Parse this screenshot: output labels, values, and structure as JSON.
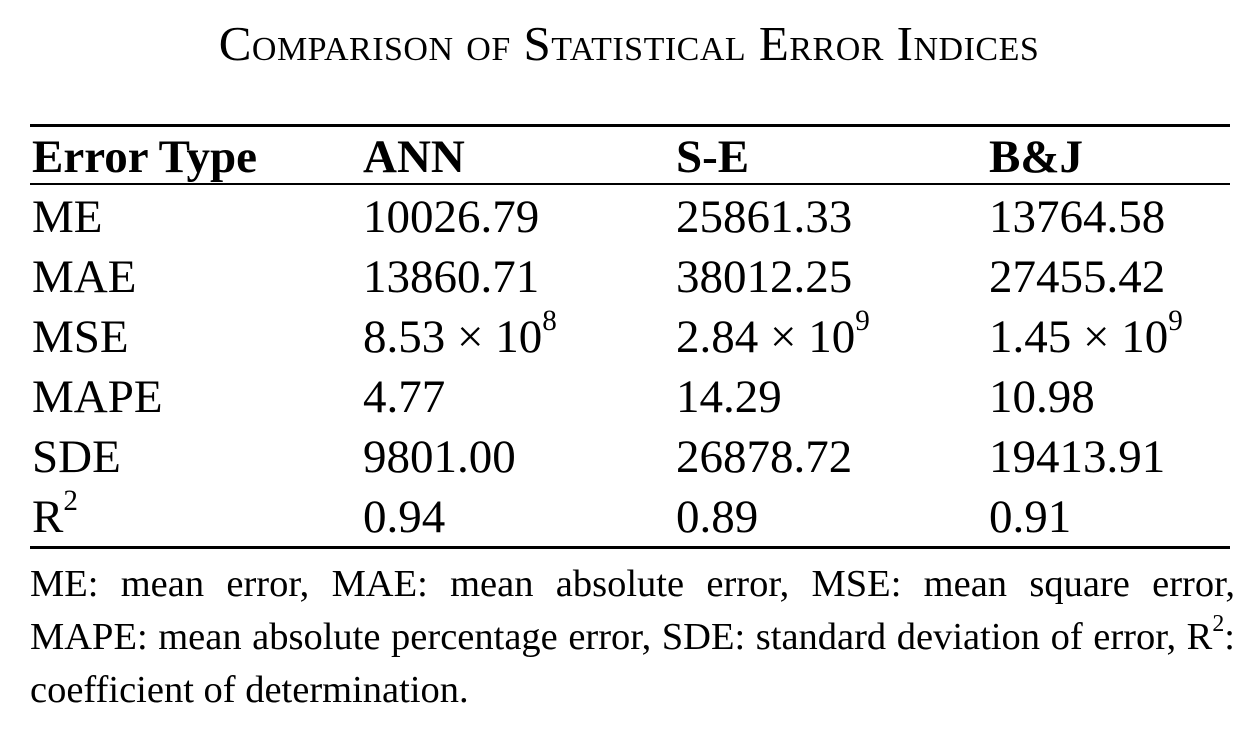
{
  "caption": "Comparison of Statistical Error Indices",
  "table": {
    "headers": [
      "Error Type",
      "ANN",
      "S-E",
      "B&J"
    ],
    "rows": [
      {
        "label": "ME",
        "label_sup": "",
        "values": [
          {
            "base": "10026.79",
            "sup": ""
          },
          {
            "base": "25861.33",
            "sup": ""
          },
          {
            "base": "13764.58",
            "sup": ""
          }
        ]
      },
      {
        "label": "MAE",
        "label_sup": "",
        "values": [
          {
            "base": "13860.71",
            "sup": ""
          },
          {
            "base": "38012.25",
            "sup": ""
          },
          {
            "base": "27455.42",
            "sup": ""
          }
        ]
      },
      {
        "label": "MSE",
        "label_sup": "",
        "values": [
          {
            "base": "8.53 × 10",
            "sup": "8"
          },
          {
            "base": "2.84 × 10",
            "sup": "9"
          },
          {
            "base": "1.45 × 10",
            "sup": "9"
          }
        ]
      },
      {
        "label": "MAPE",
        "label_sup": "",
        "values": [
          {
            "base": "4.77",
            "sup": ""
          },
          {
            "base": "14.29",
            "sup": ""
          },
          {
            "base": "10.98",
            "sup": ""
          }
        ]
      },
      {
        "label": "SDE",
        "label_sup": "",
        "values": [
          {
            "base": "9801.00",
            "sup": ""
          },
          {
            "base": "26878.72",
            "sup": ""
          },
          {
            "base": "19413.91",
            "sup": ""
          }
        ]
      },
      {
        "label": "R",
        "label_sup": "2",
        "values": [
          {
            "base": "0.94",
            "sup": ""
          },
          {
            "base": "0.89",
            "sup": ""
          },
          {
            "base": "0.91",
            "sup": ""
          }
        ]
      }
    ]
  },
  "footnote": {
    "before": "ME: mean error, MAE: mean absolute error, MSE: mean square error, MAPE: mean absolute percentage error, SDE: standard deviation of error, R",
    "sup": "2",
    "after": ": coefficient of determination."
  }
}
